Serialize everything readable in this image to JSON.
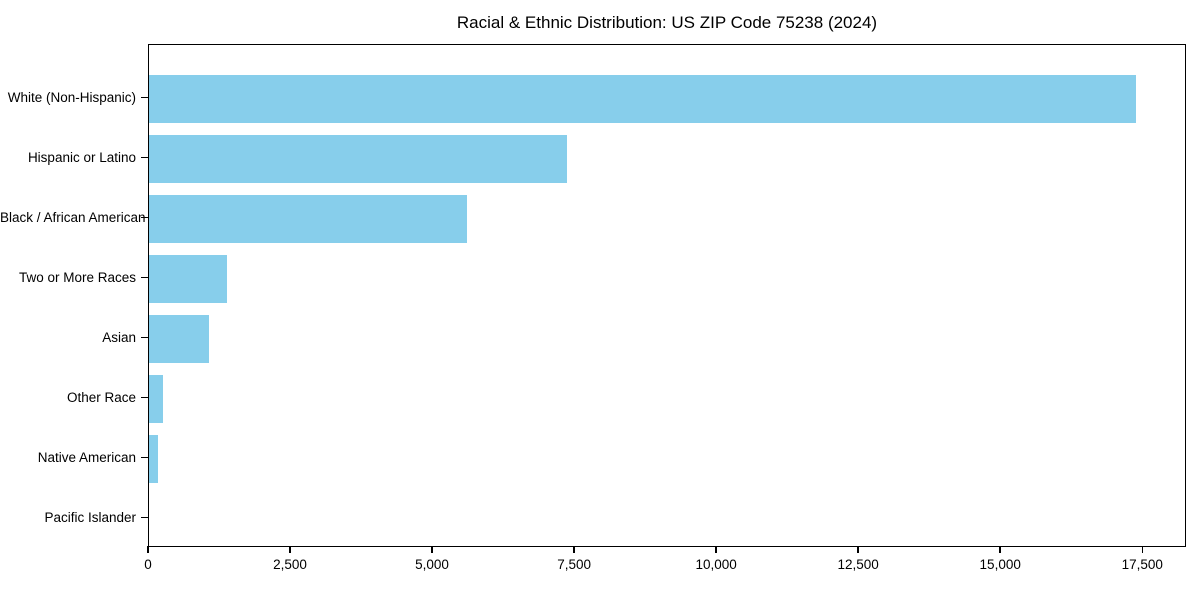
{
  "page": {
    "background_color": "#ffffff",
    "text_color": "#000000"
  },
  "chart_data": {
    "type": "bar",
    "orientation": "horizontal",
    "title": "Racial & Ethnic Distribution: US ZIP Code 75238 (2024)",
    "xlabel": "",
    "ylabel": "",
    "categories": [
      "White (Non-Hispanic)",
      "Hispanic or Latino",
      "Black / African American",
      "Two or More Races",
      "Asian",
      "Other Race",
      "Native American",
      "Pacific Islander"
    ],
    "values": [
      17400,
      7380,
      5600,
      1370,
      1060,
      250,
      160,
      0
    ],
    "x_ticks": [
      0,
      2500,
      5000,
      7500,
      10000,
      12500,
      15000,
      17500
    ],
    "x_tick_labels": [
      "0",
      "2,500",
      "5,000",
      "7,500",
      "10,000",
      "12,500",
      "15,000",
      "17,500"
    ],
    "xlim": [
      0,
      18270
    ],
    "bar_color": "#87CEEB",
    "axis_color": "#000000",
    "grid": false,
    "legend": null
  }
}
